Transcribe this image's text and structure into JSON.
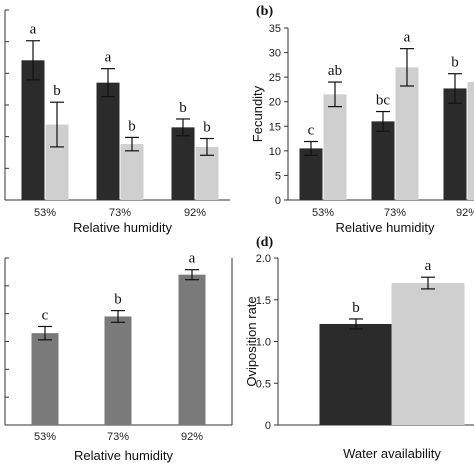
{
  "chart_data": [
    {
      "panel": "a",
      "panel_label": "",
      "type": "bar",
      "categories": [
        "53%",
        "73%",
        "92%"
      ],
      "xlabel": "Relative humidity",
      "ylabel": "",
      "ylim": [
        0,
        3.4
      ],
      "series": [
        {
          "color": "#2b2b2b",
          "values": [
            2.5,
            2.1,
            1.3
          ],
          "errors": [
            0.35,
            0.25,
            0.15
          ],
          "letters": [
            "a",
            "a",
            "b"
          ]
        },
        {
          "color": "#cfcfcf",
          "values": [
            1.35,
            1.0,
            0.95
          ],
          "errors": [
            0.4,
            0.12,
            0.15
          ],
          "letters": [
            "b",
            "b",
            "b"
          ]
        }
      ]
    },
    {
      "panel": "b",
      "panel_label": "(b)",
      "type": "bar",
      "categories": [
        "53%",
        "73%",
        "92%"
      ],
      "xlabel": "Relative humidity",
      "ylabel": "Fecundity",
      "ylim": [
        0,
        35
      ],
      "yticks": [
        "0",
        "5",
        "10",
        "15",
        "20",
        "25",
        "30",
        "35"
      ],
      "series": [
        {
          "color": "#2b2b2b",
          "values": [
            10.5,
            16,
            22.7
          ],
          "errors": [
            1.4,
            2.0,
            3.0
          ],
          "letters": [
            "c",
            "bc",
            "b"
          ]
        },
        {
          "color": "#cfcfcf",
          "values": [
            21.5,
            27,
            24
          ],
          "errors": [
            2.5,
            3.8,
            0
          ],
          "letters": [
            "ab",
            "a",
            ""
          ]
        }
      ]
    },
    {
      "panel": "c",
      "panel_label": "",
      "type": "bar",
      "categories": [
        "53%",
        "73%",
        "92%"
      ],
      "xlabel": "Relative humidity",
      "ylabel": "",
      "ylim": [
        0,
        2.0
      ],
      "series": [
        {
          "color": "#7a7a7a",
          "values": [
            1.1,
            1.3,
            1.8
          ],
          "errors": [
            0.08,
            0.07,
            0.06
          ],
          "letters": [
            "c",
            "b",
            "a"
          ]
        }
      ]
    },
    {
      "panel": "d",
      "panel_label": "(d)",
      "type": "bar",
      "categories": [
        ""
      ],
      "xlabel": "Water availability",
      "ylabel": "Oviposition rate",
      "ylim": [
        0,
        2.0
      ],
      "yticks": [
        "0",
        "0.5",
        "1.0",
        "1.5",
        "2.0"
      ],
      "series": [
        {
          "color": "#2b2b2b",
          "values": [
            1.21
          ],
          "errors": [
            0.06
          ],
          "letters": [
            "b"
          ]
        },
        {
          "color": "#cfcfcf",
          "values": [
            1.7
          ],
          "errors": [
            0.07
          ],
          "letters": [
            "a"
          ]
        }
      ]
    }
  ]
}
